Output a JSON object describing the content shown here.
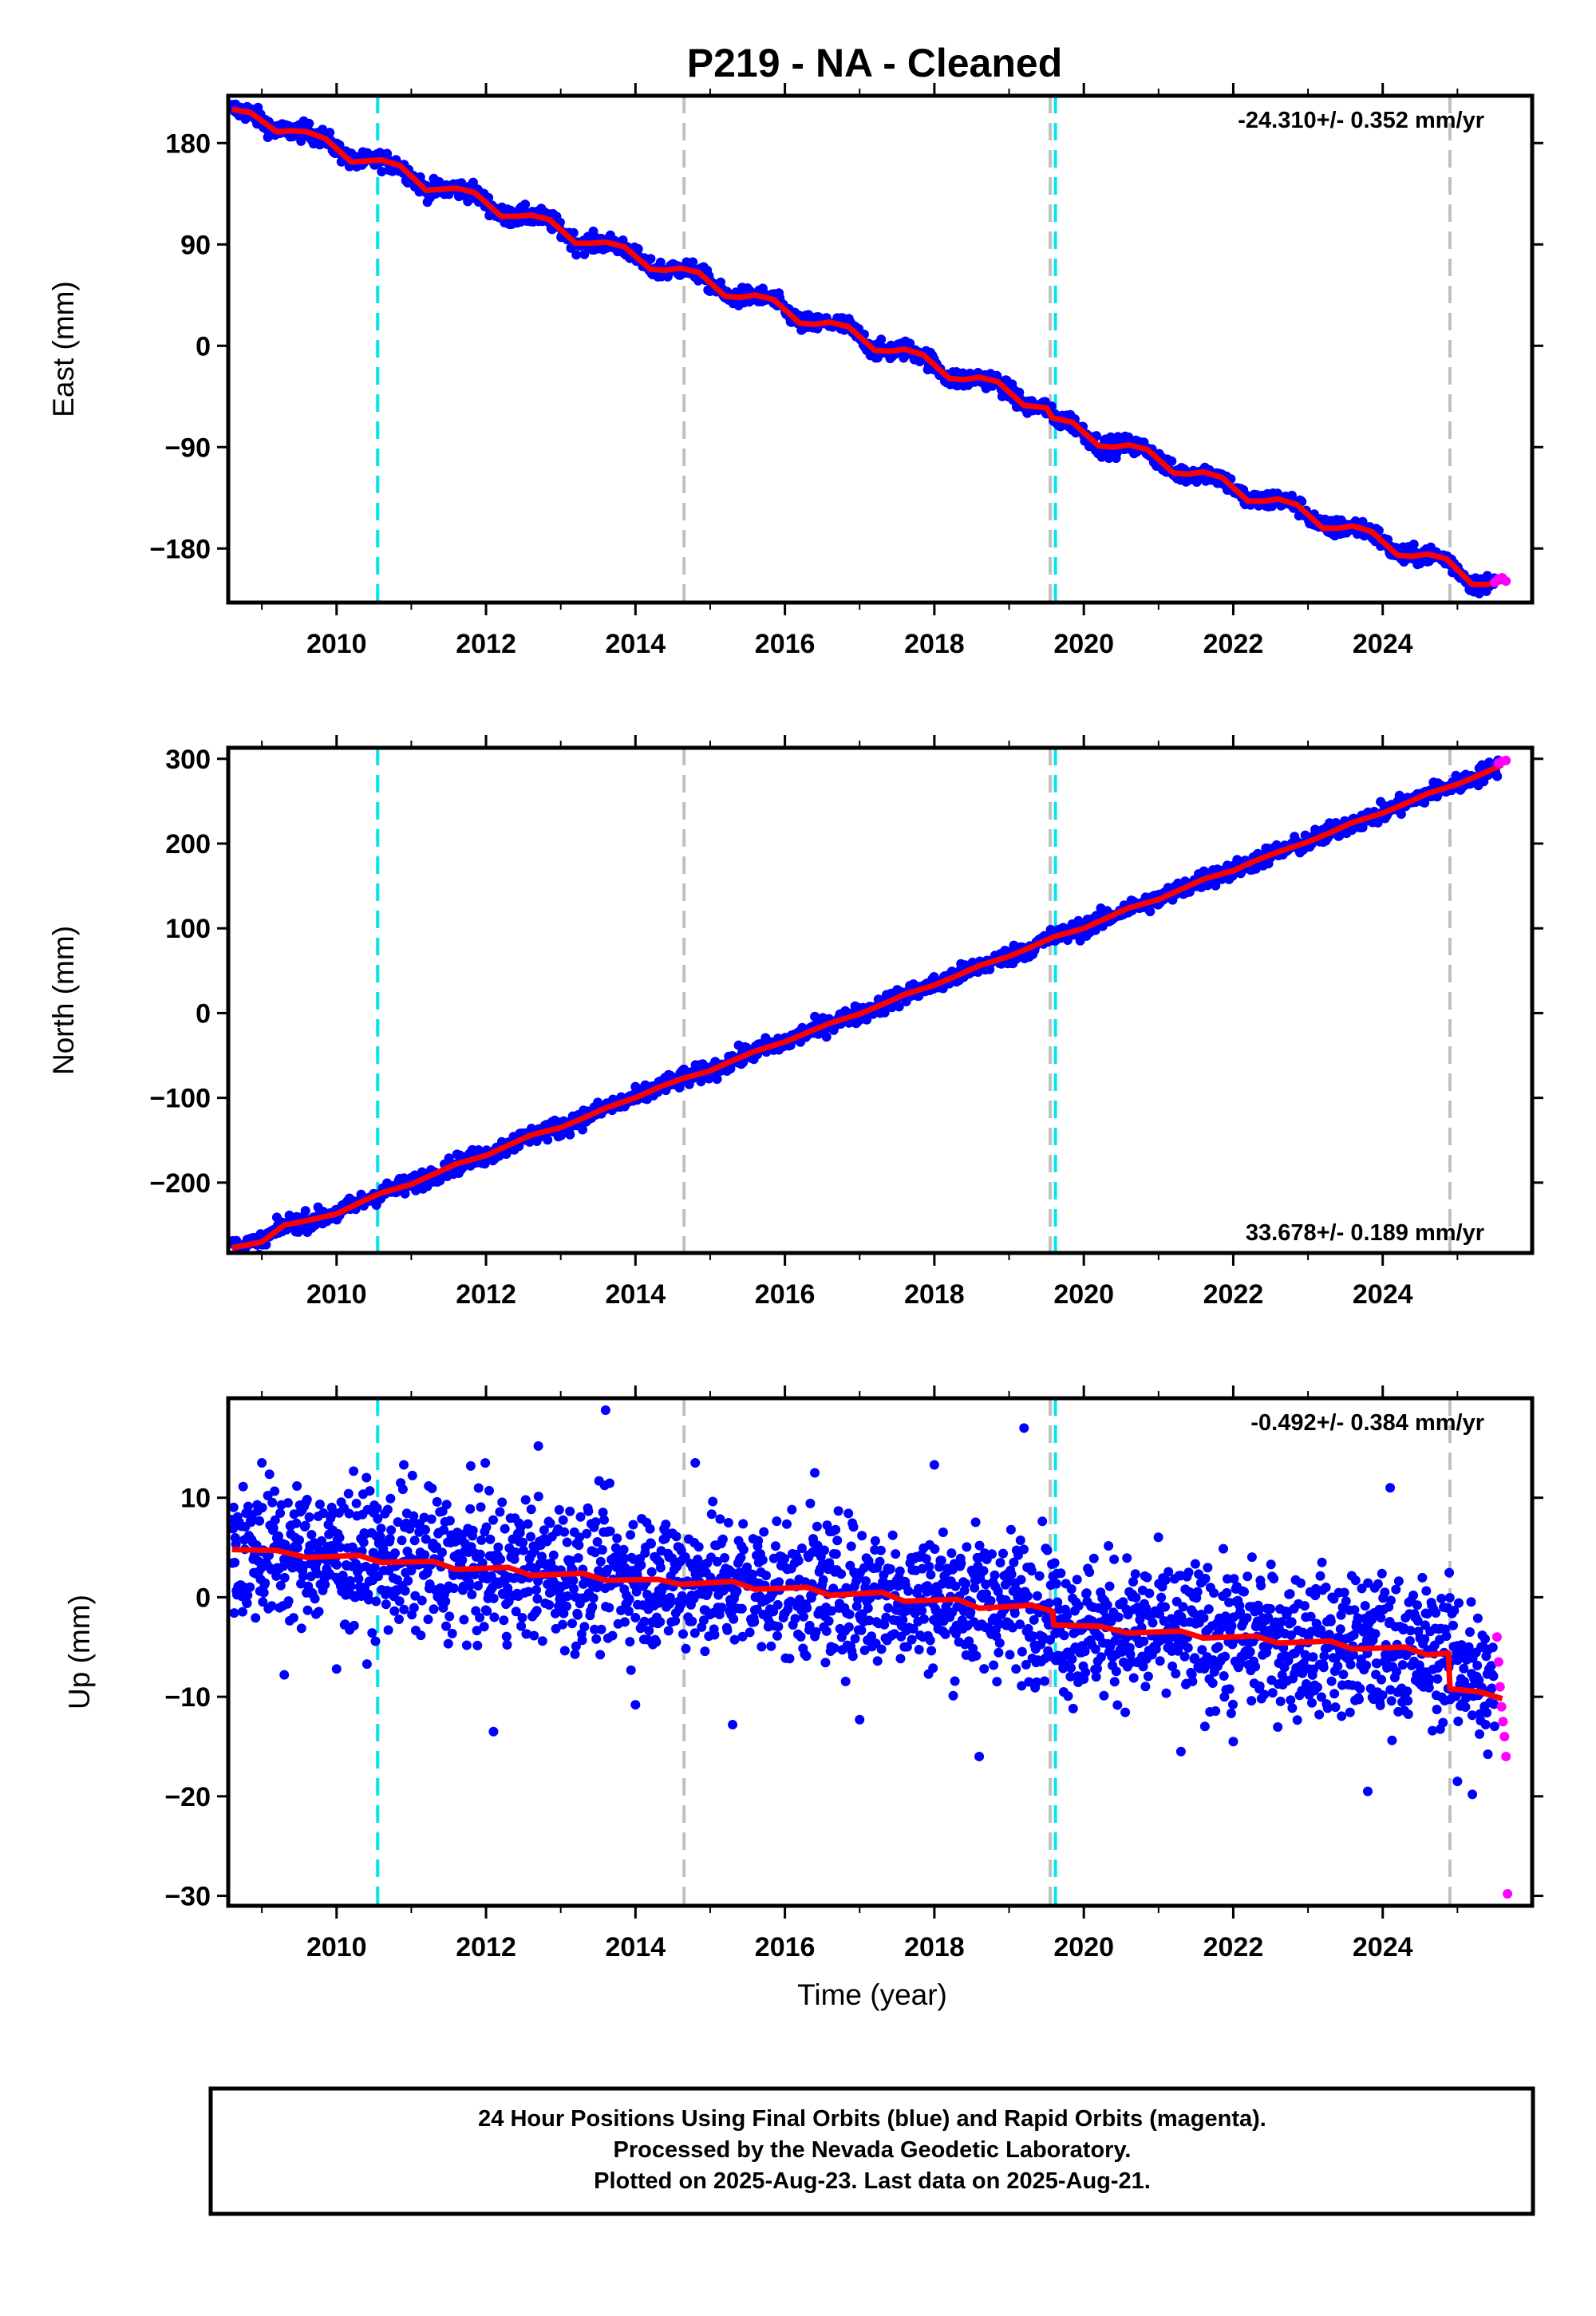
{
  "title": "P219  - NA - Cleaned",
  "colors": {
    "final_orbits": "#0000ff",
    "rapid_orbits": "#ff00ff",
    "model_fit": "#ff0000",
    "equipment_change": "#00e5ee",
    "other_event": "#c0c0c0"
  },
  "xaxis": {
    "label": "Time (year)",
    "range": [
      2008.55,
      2026.0
    ],
    "ticks": [
      2010,
      2012,
      2014,
      2016,
      2018,
      2020,
      2022,
      2024
    ],
    "tick_labels": [
      "2010",
      "2012",
      "2014",
      "2016",
      "2018",
      "2020",
      "2022",
      "2024"
    ]
  },
  "events": {
    "cyan_dashed": [
      2010.55,
      2019.62
    ],
    "gray_dashed": [
      2014.65,
      2019.55,
      2024.9
    ]
  },
  "chart_data": [
    {
      "type": "scatter",
      "component": "East",
      "ylabel": "East (mm)",
      "ylim": [
        -228,
        222
      ],
      "yticks": [
        180,
        90,
        0,
        -90,
        -180
      ],
      "ytick_labels": [
        "180",
        "90",
        "0",
        "−90",
        "−180"
      ],
      "rate": "-24.310+/- 0.352 mm/yr",
      "rate_position": "top-right",
      "series": [
        {
          "role": "model",
          "x": [
            2008.6,
            2008.85,
            2009.2,
            2009.4,
            2009.6,
            2009.85,
            2010.2,
            2010.4,
            2010.6,
            2010.85,
            2011.2,
            2011.4,
            2011.6,
            2011.85,
            2012.2,
            2012.4,
            2012.6,
            2012.85,
            2013.2,
            2013.4,
            2013.6,
            2013.85,
            2014.2,
            2014.4,
            2014.6,
            2014.85,
            2015.2,
            2015.4,
            2015.6,
            2015.85,
            2016.2,
            2016.4,
            2016.6,
            2016.85,
            2017.2,
            2017.4,
            2017.6,
            2017.85,
            2018.2,
            2018.4,
            2018.6,
            2018.85,
            2019.2,
            2019.5,
            2019.58,
            2019.85,
            2020.2,
            2020.4,
            2020.6,
            2020.85,
            2021.2,
            2021.4,
            2021.6,
            2021.85,
            2022.2,
            2022.4,
            2022.6,
            2022.85,
            2023.2,
            2023.4,
            2023.6,
            2023.85,
            2024.2,
            2024.4,
            2024.6,
            2024.85,
            2025.2,
            2025.4,
            2025.6
          ],
          "y": [
            210,
            207,
            190,
            191,
            190,
            184,
            163,
            164,
            165,
            160,
            138,
            139,
            140,
            136,
            115,
            115,
            116,
            112,
            91,
            91,
            92,
            88,
            68,
            67,
            69,
            65,
            44,
            43,
            45,
            41,
            20,
            19,
            21,
            17,
            -4,
            -5,
            -3,
            -8,
            -29,
            -30,
            -28,
            -32,
            -53,
            -55,
            -64,
            -68,
            -89,
            -90,
            -88,
            -92,
            -113,
            -114,
            -112,
            -117,
            -138,
            -138,
            -136,
            -141,
            -162,
            -162,
            -160,
            -165,
            -186,
            -187,
            -185,
            -189,
            -212,
            -212,
            -209
          ]
        },
        {
          "role": "rapid",
          "x": [
            2025.5,
            2025.55,
            2025.6,
            2025.65
          ],
          "y": [
            -210,
            -207,
            -206,
            -209
          ]
        }
      ]
    },
    {
      "type": "scatter",
      "component": "North",
      "ylabel": "North (mm)",
      "ylim": [
        -283,
        313
      ],
      "yticks": [
        300,
        200,
        100,
        0,
        -100,
        -200
      ],
      "ytick_labels": [
        "300",
        "200",
        "100",
        "0",
        "−100",
        "−200"
      ],
      "rate": "33.678+/- 0.189 mm/yr",
      "rate_position": "bottom-right",
      "series": [
        {
          "role": "model",
          "x": [
            2008.6,
            2009.0,
            2009.3,
            2009.6,
            2010.0,
            2010.3,
            2010.6,
            2011.0,
            2011.3,
            2011.6,
            2012.0,
            2012.3,
            2012.6,
            2013.0,
            2013.3,
            2013.6,
            2014.0,
            2014.3,
            2014.6,
            2015.0,
            2015.3,
            2015.6,
            2016.0,
            2016.3,
            2016.6,
            2017.0,
            2017.3,
            2017.6,
            2018.0,
            2018.3,
            2018.6,
            2019.0,
            2019.3,
            2019.6,
            2020.0,
            2020.3,
            2020.6,
            2021.0,
            2021.3,
            2021.6,
            2022.0,
            2022.3,
            2022.6,
            2023.0,
            2023.3,
            2023.6,
            2024.0,
            2024.3,
            2024.6,
            2025.0,
            2025.3,
            2025.6
          ],
          "y": [
            -277,
            -270,
            -250,
            -245,
            -237,
            -224,
            -212,
            -202,
            -190,
            -178,
            -168,
            -156,
            -144,
            -135,
            -124,
            -112,
            -100,
            -88,
            -78,
            -68,
            -56,
            -45,
            -34,
            -23,
            -12,
            -1,
            10,
            22,
            33,
            44,
            56,
            67,
            78,
            90,
            100,
            112,
            124,
            134,
            146,
            158,
            168,
            180,
            190,
            202,
            213,
            225,
            236,
            247,
            259,
            270,
            281,
            293
          ]
        },
        {
          "role": "rapid",
          "x": [
            2025.55,
            2025.6,
            2025.65
          ],
          "y": [
            295,
            297,
            298
          ]
        }
      ]
    },
    {
      "type": "scatter",
      "component": "Up",
      "ylabel": "Up (mm)",
      "ylim": [
        -31,
        20
      ],
      "yticks": [
        10,
        0,
        -10,
        -20,
        -30
      ],
      "ytick_labels": [
        "10",
        "0",
        "−10",
        "−20",
        "−30"
      ],
      "rate": "-0.492+/- 0.384 mm/yr",
      "rate_position": "top-right",
      "series": [
        {
          "role": "model",
          "x": [
            2008.6,
            2009.2,
            2009.6,
            2010.3,
            2010.6,
            2011.3,
            2011.6,
            2012.3,
            2012.6,
            2013.3,
            2013.6,
            2014.3,
            2014.6,
            2015.3,
            2015.6,
            2016.3,
            2016.6,
            2017.3,
            2017.6,
            2018.3,
            2018.6,
            2019.3,
            2019.58,
            2019.6,
            2020.2,
            2020.6,
            2021.3,
            2021.6,
            2022.3,
            2022.6,
            2023.3,
            2023.6,
            2024.3,
            2024.6,
            2024.88,
            2024.9,
            2025.3,
            2025.6
          ],
          "y": [
            4.8,
            4.7,
            4.0,
            4.2,
            3.5,
            3.6,
            2.8,
            3.0,
            2.2,
            2.4,
            1.7,
            1.8,
            1.3,
            1.6,
            0.8,
            1.0,
            0.2,
            0.5,
            -0.4,
            -0.2,
            -1.1,
            -0.8,
            -1.4,
            -2.8,
            -2.9,
            -3.6,
            -3.4,
            -4.1,
            -3.9,
            -4.6,
            -4.4,
            -5.2,
            -5.0,
            -5.8,
            -5.6,
            -9.2,
            -9.5,
            -10.2
          ]
        },
        {
          "role": "final_envelope",
          "x": [
            2008.6,
            2019.55,
            2019.65,
            2024.9,
            2025.5
          ],
          "y_center": [
            4.8,
            -0.9,
            -2.8,
            -5.6,
            -9.8
          ],
          "y_spread": 4.5
        },
        {
          "role": "final_outliers",
          "x": [
            2009.0,
            2009.3,
            2010.0,
            2010.9,
            2012.1,
            2012.7,
            2013.6,
            2014.0,
            2014.8,
            2015.3,
            2016.4,
            2017.0,
            2018.0,
            2018.6,
            2019.2,
            2021.3,
            2022.0,
            2023.8,
            2024.1,
            2025.0,
            2025.2
          ],
          "y": [
            13.5,
            -7.8,
            -7.2,
            13.3,
            -13.5,
            15.2,
            18.8,
            -10.8,
            13.5,
            -12.8,
            12.5,
            -12.3,
            13.3,
            -16.0,
            17.0,
            -15.5,
            -14.5,
            -19.5,
            11.0,
            -18.5,
            -19.8
          ]
        },
        {
          "role": "rapid",
          "x": [
            2025.53,
            2025.55,
            2025.57,
            2025.59,
            2025.61,
            2025.63,
            2025.65,
            2025.67
          ],
          "y": [
            -4.0,
            -6.5,
            -9.0,
            -11.0,
            -12.5,
            -14.0,
            -16.0,
            -29.8
          ]
        }
      ]
    }
  ],
  "footer": {
    "line1": "24 Hour Positions Using Final Orbits (blue) and Rapid Orbits (magenta).",
    "line2": "Processed by the Nevada Geodetic Laboratory.",
    "line3": "Plotted on 2025-Aug-23. Last data on 2025-Aug-21."
  }
}
